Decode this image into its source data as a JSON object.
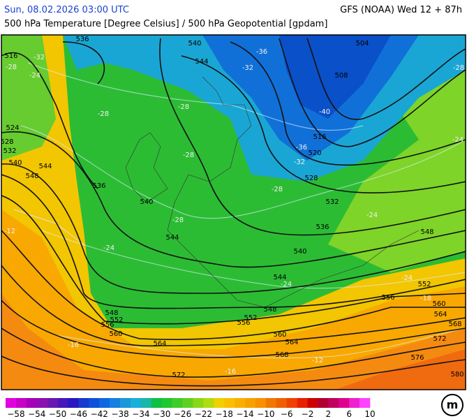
{
  "header": {
    "date": "Sun, 08.02.2026 03:00 UTC",
    "model": "GFS (NOAA) Wed 12 + 87h",
    "subtitle": "500 hPa Temperature [Degree Celsius] / 500 hPa Geopotential [gpdam]"
  },
  "contour_labels": [
    "536",
    "540",
    "544",
    "504",
    "508",
    "516",
    "524",
    "528",
    "532",
    "540",
    "544",
    "548",
    "536",
    "540",
    "544",
    "516",
    "520",
    "528",
    "532",
    "536",
    "540",
    "544",
    "548",
    "552",
    "556",
    "548",
    "552",
    "556",
    "560",
    "564",
    "560",
    "564",
    "568",
    "572",
    "556",
    "560",
    "564",
    "568",
    "572",
    "576",
    "580",
    "548",
    "552"
  ],
  "temperature_labels": [
    "-32",
    "-28",
    "-24",
    "-36",
    "-32",
    "-40",
    "-28",
    "-28",
    "-28",
    "-36",
    "-32",
    "-28",
    "-28",
    "-24",
    "-24",
    "-24",
    "-12",
    "-24",
    "-18",
    "-16",
    "-12",
    "-16",
    "-28",
    "-24"
  ],
  "colorbar": {
    "labels": [
      "−58",
      "−54",
      "−50",
      "−46",
      "−42",
      "−38",
      "−34",
      "−30",
      "−26",
      "−22",
      "−18",
      "−14",
      "−10",
      "−6",
      "−2",
      "2",
      "6",
      "10"
    ],
    "colors": [
      "#e000e0",
      "#c800c8",
      "#a800b8",
      "#8c10b0",
      "#6a18b0",
      "#4818b8",
      "#2818c0",
      "#1838d0",
      "#1050d8",
      "#1068e0",
      "#1480e0",
      "#1898d8",
      "#18b0d8",
      "#18b8a8",
      "#10c040",
      "#20c830",
      "#40cc28",
      "#60d020",
      "#88d818",
      "#b0dc10",
      "#f0d000",
      "#f8c000",
      "#f8b000",
      "#f8a000",
      "#f89000",
      "#f07800",
      "#f06000",
      "#f04000",
      "#e82000",
      "#d00000",
      "#b00030",
      "#c00060",
      "#e00090",
      "#f020d0",
      "#ff40ff"
    ]
  },
  "logo": "m"
}
